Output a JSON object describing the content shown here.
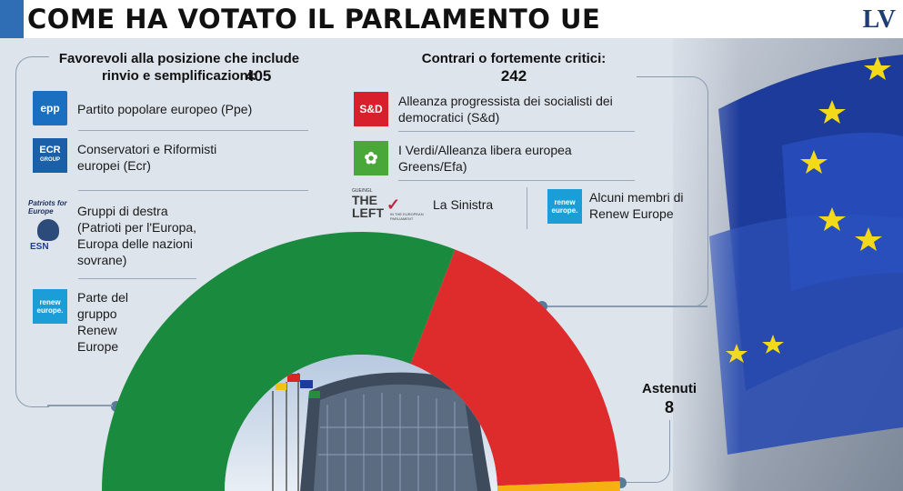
{
  "header": {
    "title": "COME HA VOTATO IL PARLAMENTO UE",
    "logo": "LV"
  },
  "chart_data": {
    "type": "pie",
    "subtype": "half-donut",
    "categories": [
      "Favorevoli alla posizione che include rinvio e semplificazioni",
      "Contrari o fortemente critici",
      "Astenuti"
    ],
    "values": [
      405,
      242,
      8
    ],
    "colors": [
      "#1a8a3f",
      "#de2c2c",
      "#f5b10f"
    ]
  },
  "favorevoli": {
    "title": "Favorevoli alla posizione che include rinvio e semplificazioni:",
    "count": "405",
    "groups": [
      {
        "label": "Partito popolare europeo (Ppe)",
        "logo_text": "epp"
      },
      {
        "label": "Conservatori e Riformisti europei (Ecr)",
        "logo_text": "ECR",
        "logo_sub": "GROUP"
      },
      {
        "label": "Gruppi di destra (Patrioti per l'Europa, Europa delle nazioni sovrane)",
        "logo_text": "Patriots for Europe",
        "logo_sub": "ESN"
      },
      {
        "label": "Parte del gruppo Renew Europe",
        "logo_text": "renew europe."
      }
    ]
  },
  "contrari": {
    "title": "Contrari o fortemente critici:",
    "count": "242",
    "groups": [
      {
        "label": "Alleanza progressista dei socialisti dei democratici (S&d)",
        "logo_text": "S&D"
      },
      {
        "label": "I Verdi/Alleanza libera europea Greens/Efa)",
        "logo_text": "✿"
      },
      {
        "label": "La Sinistra",
        "logo_text": "THE LEFT",
        "logo_sub": "IN THE EUROPEAN PARLIAMENT",
        "logo_top": "GUE/NGL"
      },
      {
        "label": "Alcuni membri di Renew Europe",
        "logo_text": "renew europe."
      }
    ]
  },
  "astenuti": {
    "title": "Astenuti",
    "count": "8"
  },
  "colors": {
    "accent": "#2f6db5",
    "epp": "#1b6fc1",
    "ecr": "#1a5fa8",
    "sd": "#d7202c",
    "greens": "#4aa83a",
    "renew": "#1b9ed8"
  }
}
